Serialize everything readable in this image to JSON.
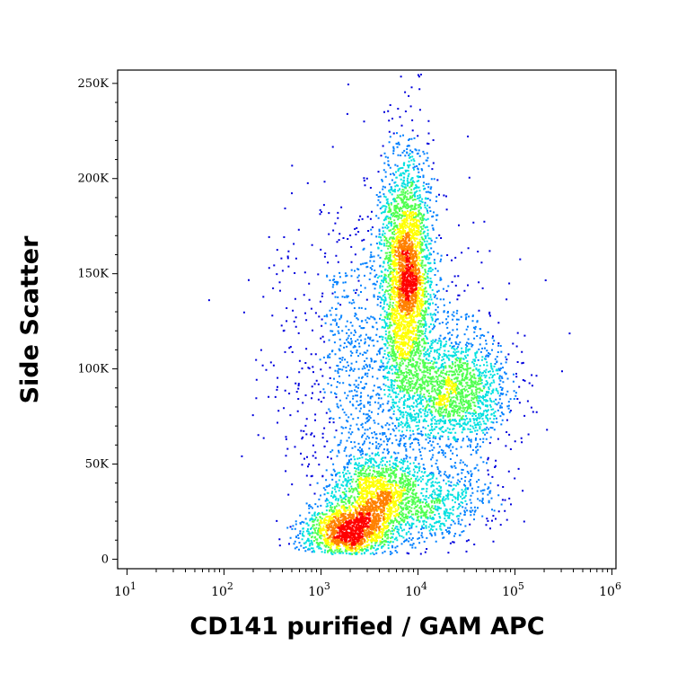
{
  "chart_data": {
    "type": "scatter",
    "style": "density-pseudocolor",
    "xlabel": "CD141 purified / GAM APC",
    "ylabel": "Side Scatter",
    "x_scale": "log",
    "xlim": [
      8,
      1100000
    ],
    "ylim": [
      -5000,
      257000
    ],
    "x_ticks": [
      {
        "value": 10,
        "base": "10",
        "exp": "1"
      },
      {
        "value": 100,
        "base": "10",
        "exp": "2"
      },
      {
        "value": 1000,
        "base": "10",
        "exp": "3"
      },
      {
        "value": 10000,
        "base": "10",
        "exp": "4"
      },
      {
        "value": 100000,
        "base": "10",
        "exp": "5"
      },
      {
        "value": 1000000,
        "base": "10",
        "exp": "6"
      }
    ],
    "y_ticks": [
      {
        "value": 0,
        "label": "0"
      },
      {
        "value": 50000,
        "label": "50K"
      },
      {
        "value": 100000,
        "label": "100K"
      },
      {
        "value": 150000,
        "label": "150K"
      },
      {
        "value": 200000,
        "label": "200K"
      },
      {
        "value": 250000,
        "label": "250K"
      }
    ],
    "grid": false,
    "colors": [
      "#0000dd",
      "#0080ff",
      "#00e0e0",
      "#50ff50",
      "#ffff00",
      "#ff8000",
      "#ff0000"
    ],
    "populations": [
      {
        "x_center": 1800,
        "y_center": 15000,
        "x_spread_decades": 0.22,
        "y_spread": 7000,
        "weight": 0.14
      },
      {
        "x_center": 3500,
        "y_center": 33000,
        "x_spread_decades": 0.22,
        "y_spread": 11000,
        "weight": 0.13
      },
      {
        "x_center": 7500,
        "y_center": 150000,
        "x_spread_decades": 0.13,
        "y_spread": 32000,
        "weight": 0.32
      },
      {
        "x_center": 25000,
        "y_center": 88000,
        "x_spread_decades": 0.28,
        "y_spread": 15000,
        "weight": 0.16
      },
      {
        "x_center": 4000,
        "y_center": 95000,
        "x_spread_decades": 0.5,
        "y_spread": 45000,
        "weight": 0.17
      },
      {
        "x_center": 12000,
        "y_center": 30000,
        "x_spread_decades": 0.35,
        "y_spread": 10000,
        "weight": 0.08
      }
    ]
  }
}
